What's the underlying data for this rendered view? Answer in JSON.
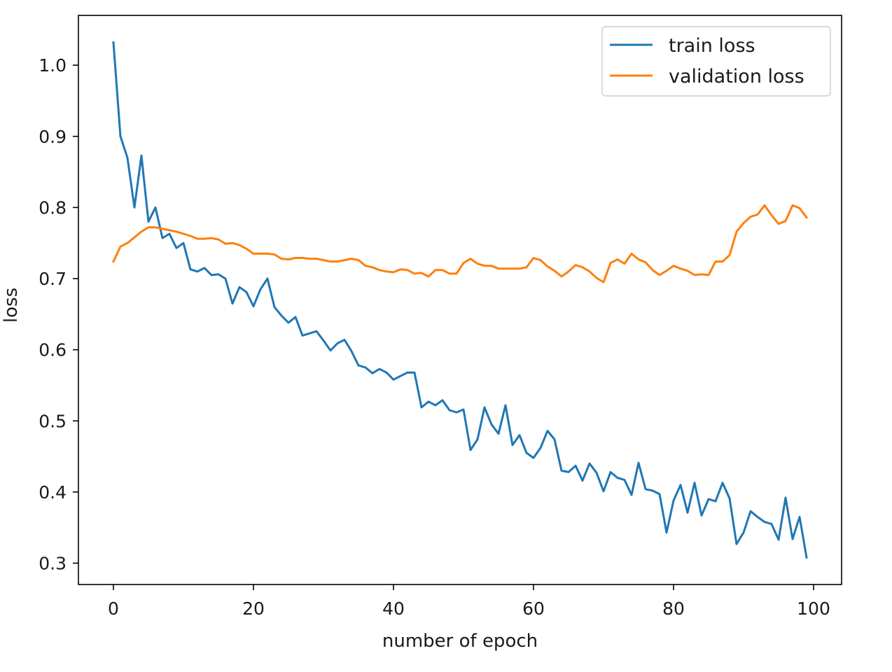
{
  "chart_data": {
    "type": "line",
    "title": "",
    "xlabel": "number of epoch",
    "ylabel": "loss",
    "xlim": [
      -5,
      104
    ],
    "ylim": [
      0.27,
      1.07
    ],
    "xticks": [
      0,
      20,
      40,
      60,
      80,
      100
    ],
    "yticks": [
      0.3,
      0.4,
      0.5,
      0.6,
      0.7,
      0.8,
      0.9,
      1.0
    ],
    "xtick_labels": [
      "0",
      "20",
      "40",
      "60",
      "80",
      "100"
    ],
    "ytick_labels": [
      "0.3",
      "0.4",
      "0.5",
      "0.6",
      "0.7",
      "0.8",
      "0.9",
      "1.0"
    ],
    "grid": false,
    "legend_position": "top-right",
    "x": [
      0,
      1,
      2,
      3,
      4,
      5,
      6,
      7,
      8,
      9,
      10,
      11,
      12,
      13,
      14,
      15,
      16,
      17,
      18,
      19,
      20,
      21,
      22,
      23,
      24,
      25,
      26,
      27,
      28,
      29,
      30,
      31,
      32,
      33,
      34,
      35,
      36,
      37,
      38,
      39,
      40,
      41,
      42,
      43,
      44,
      45,
      46,
      47,
      48,
      49,
      50,
      51,
      52,
      53,
      54,
      55,
      56,
      57,
      58,
      59,
      60,
      61,
      62,
      63,
      64,
      65,
      66,
      67,
      68,
      69,
      70,
      71,
      72,
      73,
      74,
      75,
      76,
      77,
      78,
      79,
      80,
      81,
      82,
      83,
      84,
      85,
      86,
      87,
      88,
      89,
      90,
      91,
      92,
      93,
      94,
      95,
      96,
      97,
      98,
      99
    ],
    "series": [
      {
        "name": "train loss",
        "color": "#1f77b4",
        "values": [
          1.032,
          0.9,
          0.87,
          0.8,
          0.873,
          0.78,
          0.8,
          0.757,
          0.763,
          0.743,
          0.75,
          0.713,
          0.71,
          0.715,
          0.705,
          0.706,
          0.7,
          0.665,
          0.688,
          0.681,
          0.661,
          0.685,
          0.7,
          0.66,
          0.648,
          0.638,
          0.646,
          0.62,
          0.623,
          0.626,
          0.613,
          0.599,
          0.609,
          0.614,
          0.598,
          0.578,
          0.575,
          0.567,
          0.573,
          0.568,
          0.558,
          0.563,
          0.568,
          0.568,
          0.519,
          0.527,
          0.522,
          0.529,
          0.515,
          0.512,
          0.516,
          0.459,
          0.474,
          0.519,
          0.495,
          0.482,
          0.522,
          0.466,
          0.48,
          0.455,
          0.448,
          0.462,
          0.486,
          0.474,
          0.43,
          0.428,
          0.437,
          0.416,
          0.44,
          0.427,
          0.401,
          0.428,
          0.42,
          0.417,
          0.396,
          0.441,
          0.404,
          0.402,
          0.397,
          0.343,
          0.388,
          0.41,
          0.371,
          0.413,
          0.367,
          0.39,
          0.387,
          0.413,
          0.391,
          0.327,
          0.343,
          0.373,
          0.365,
          0.358,
          0.355,
          0.333,
          0.392,
          0.334,
          0.365,
          0.308
        ]
      },
      {
        "name": "validation loss",
        "color": "#ff7f0e",
        "values": [
          0.724,
          0.745,
          0.75,
          0.758,
          0.766,
          0.772,
          0.772,
          0.77,
          0.768,
          0.766,
          0.763,
          0.76,
          0.756,
          0.756,
          0.757,
          0.755,
          0.749,
          0.75,
          0.747,
          0.742,
          0.735,
          0.735,
          0.735,
          0.734,
          0.728,
          0.727,
          0.729,
          0.729,
          0.728,
          0.728,
          0.726,
          0.724,
          0.724,
          0.726,
          0.728,
          0.726,
          0.718,
          0.716,
          0.712,
          0.71,
          0.709,
          0.713,
          0.712,
          0.707,
          0.708,
          0.703,
          0.712,
          0.712,
          0.707,
          0.707,
          0.722,
          0.728,
          0.721,
          0.718,
          0.718,
          0.714,
          0.714,
          0.714,
          0.714,
          0.716,
          0.729,
          0.726,
          0.717,
          0.711,
          0.703,
          0.71,
          0.719,
          0.716,
          0.71,
          0.701,
          0.695,
          0.722,
          0.727,
          0.721,
          0.735,
          0.727,
          0.723,
          0.712,
          0.705,
          0.711,
          0.718,
          0.714,
          0.711,
          0.705,
          0.706,
          0.705,
          0.724,
          0.724,
          0.733,
          0.766,
          0.778,
          0.787,
          0.79,
          0.803,
          0.789,
          0.777,
          0.781,
          0.803,
          0.799,
          0.786
        ]
      }
    ]
  }
}
